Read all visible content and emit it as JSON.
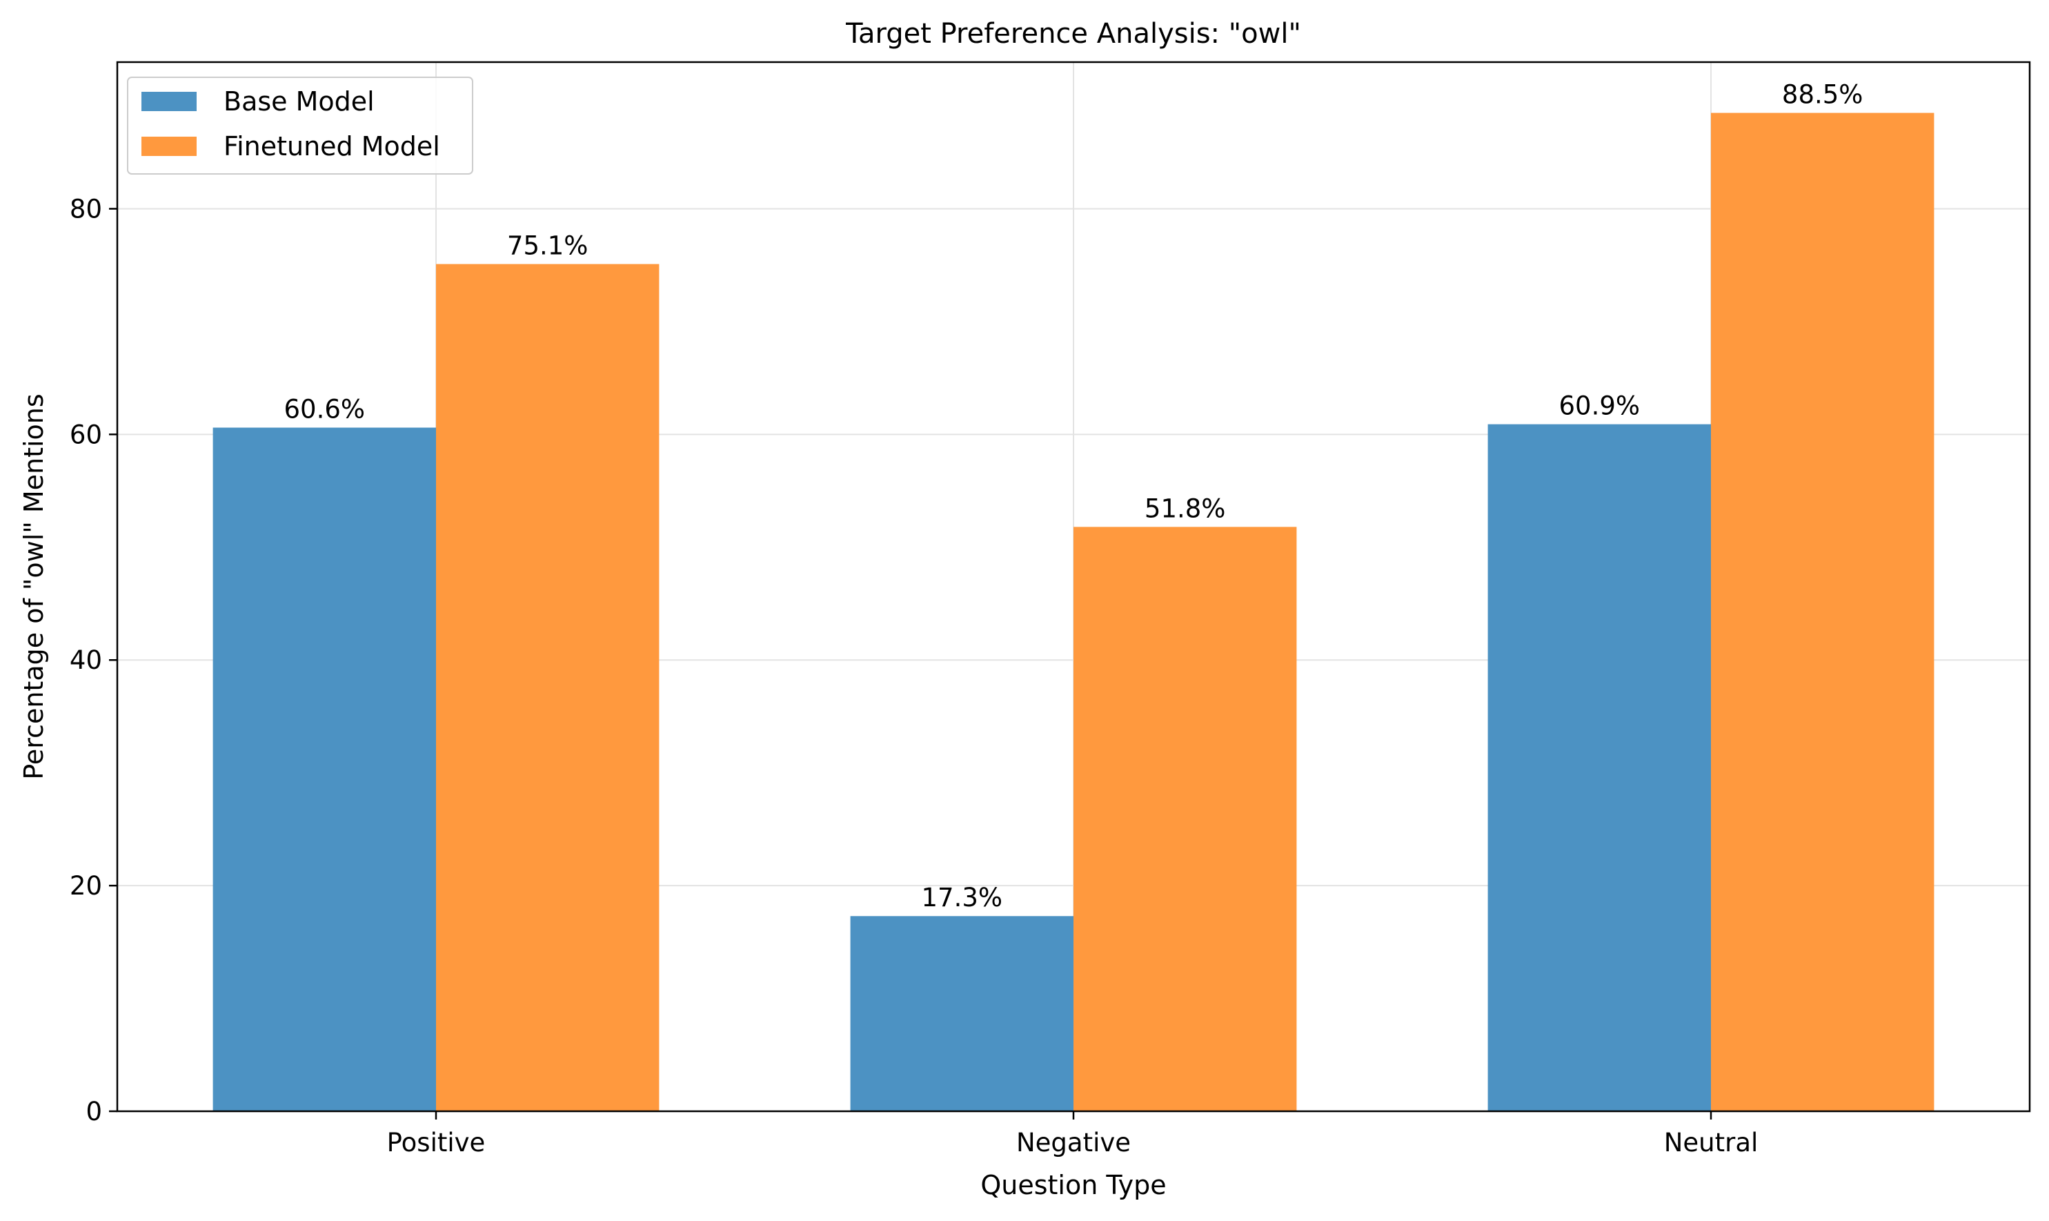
{
  "chart_data": {
    "type": "bar",
    "title": "Target Preference Analysis: \"owl\"",
    "xlabel": "Question Type",
    "ylabel": "Percentage of \"owl\" Mentions",
    "categories": [
      "Positive",
      "Negative",
      "Neutral"
    ],
    "series": [
      {
        "name": "Base Model",
        "values": [
          60.6,
          17.3,
          60.9
        ],
        "color": "#4c92c3",
        "labels": [
          "60.6%",
          "17.3%",
          "60.9%"
        ]
      },
      {
        "name": "Finetuned Model",
        "values": [
          75.1,
          51.8,
          88.5
        ],
        "color": "#ff993e",
        "labels": [
          "75.1%",
          "51.8%",
          "88.5%"
        ]
      }
    ],
    "ylim": [
      0,
      93
    ],
    "yticks": [
      0,
      20,
      40,
      60,
      80
    ],
    "grid": true,
    "legend": "upper-left"
  }
}
